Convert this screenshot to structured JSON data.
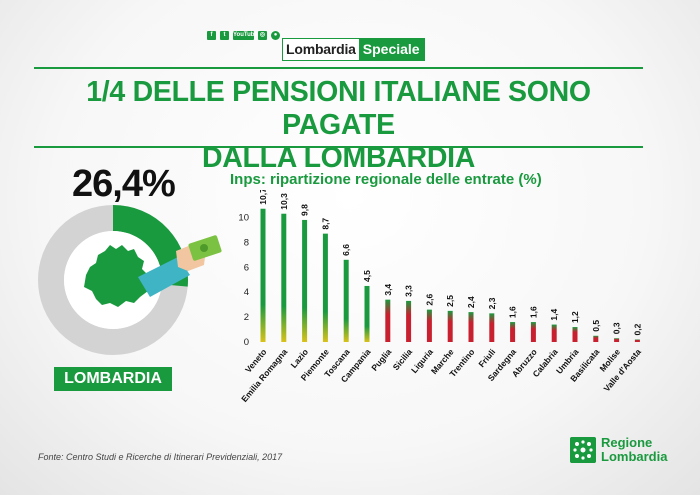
{
  "header": {
    "social_icons": [
      "facebook-icon",
      "twitter-icon",
      "youtube-icon",
      "instagram-icon",
      "circle-icon"
    ],
    "social_labels": {
      "facebook": "f",
      "twitter": "t",
      "youtube": "YouTube",
      "instagram": "◎",
      "circle": "●"
    },
    "badge_part1": "Lombardia",
    "badge_part2": "Speciale"
  },
  "title_line1": "1/4 DELLE PENSIONI ITALIANE SONO PAGATE",
  "title_line2": "DALLA LOMBARDIA",
  "left": {
    "percent": "26,4%",
    "percent_value": 26.4,
    "label": "LOMBARDIA"
  },
  "colors": {
    "green": "#1a9a3f",
    "gray": "#d3d3d3",
    "red": "#c8202e",
    "yellow": "#d9c21a"
  },
  "chart_data": {
    "type": "bar",
    "title": "Inps: ripartizione regionale delle entrate (%)",
    "categories": [
      "Veneto",
      "Emilia Romagna",
      "Lazio",
      "Piemonte",
      "Toscana",
      "Campania",
      "Puglia",
      "Sicilia",
      "Liguria",
      "Marche",
      "Trentino",
      "Friuli",
      "Sardegna",
      "Abruzzo",
      "Calabria",
      "Umbria",
      "Basilicata",
      "Molise",
      "Valle d'Aosta"
    ],
    "values": [
      10.7,
      10.3,
      9.8,
      8.7,
      6.6,
      4.5,
      3.4,
      3.3,
      2.6,
      2.5,
      2.4,
      2.3,
      1.6,
      1.6,
      1.4,
      1.2,
      0.5,
      0.3,
      0.2
    ],
    "value_labels": [
      "10,7",
      "10,3",
      "9,8",
      "8,7",
      "6,6",
      "4,5",
      "3,4",
      "3,3",
      "2,6",
      "2,5",
      "2,4",
      "2,3",
      "1,6",
      "1,6",
      "1,4",
      "1,2",
      "0,5",
      "0,3",
      "0,2"
    ],
    "yticks": [
      0,
      2,
      4,
      6,
      8,
      10
    ],
    "ylim": [
      0,
      11
    ]
  },
  "source": "Fonte: Centro Studi e Ricerche di Itinerari Previdenziali, 2017",
  "footer_logo": {
    "line1": "Regione",
    "line2": "Lombardia"
  }
}
